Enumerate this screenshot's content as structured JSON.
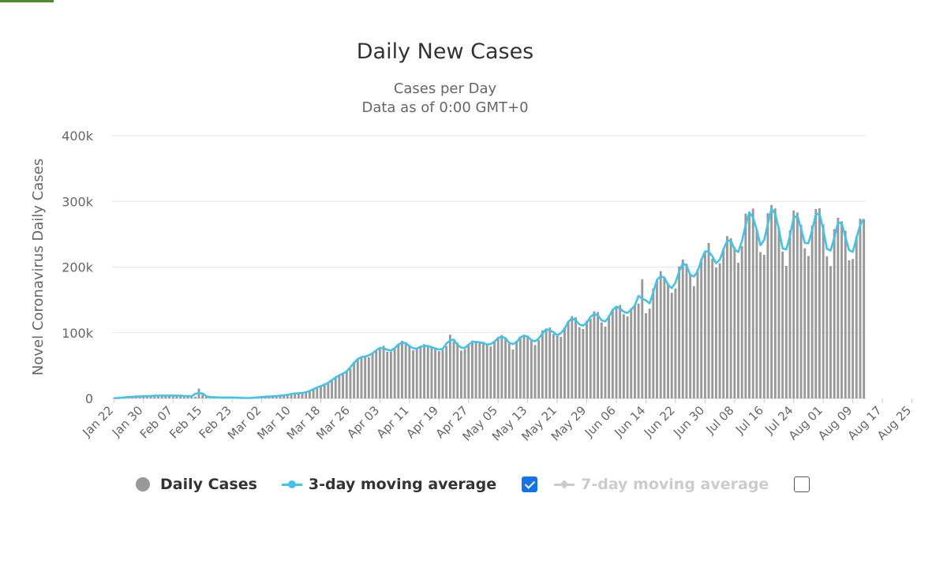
{
  "chart_data": {
    "type": "bar",
    "title": "Daily New Cases",
    "subtitle_lines": [
      "Cases per Day",
      "Data as of 0:00 GMT+0"
    ],
    "ylabel": "Novel Coronavirus Daily Cases",
    "ylim": [
      0,
      400000
    ],
    "yticks": [
      0,
      100000,
      200000,
      300000,
      400000
    ],
    "ytick_labels": [
      "0",
      "100k",
      "200k",
      "300k",
      "400k"
    ],
    "x_start": "Jan 22",
    "x_end": "Aug 28",
    "xtick_labels": [
      "Jan 22",
      "Jan 30",
      "Feb 07",
      "Feb 15",
      "Feb 23",
      "Mar 02",
      "Mar 10",
      "Mar 18",
      "Mar 26",
      "Apr 03",
      "Apr 11",
      "Apr 19",
      "Apr 27",
      "May 05",
      "May 13",
      "May 21",
      "May 29",
      "Jun 06",
      "Jun 14",
      "Jun 22",
      "Jun 30",
      "Jul 08",
      "Jul 16",
      "Jul 24",
      "Aug 01",
      "Aug 09",
      "Aug 17",
      "Aug 25"
    ],
    "grid": true,
    "legend_position": "bottom",
    "series": [
      {
        "name": "Daily Cases",
        "type": "bar",
        "color": "#999999",
        "values": [
          580,
          100,
          650,
          2100,
          1800,
          2500,
          2800,
          3200,
          3100,
          3400,
          3800,
          4100,
          4300,
          4100,
          4200,
          4500,
          4000,
          4500,
          3900,
          3800,
          3600,
          3300,
          2600,
          15000,
          5500,
          2200,
          2200,
          1800,
          1900,
          1100,
          1200,
          1700,
          1600,
          800,
          1000,
          700,
          500,
          600,
          1200,
          1400,
          2000,
          2600,
          2800,
          3100,
          3600,
          4100,
          4500,
          5200,
          6800,
          7800,
          7600,
          8100,
          9000,
          11000,
          14200,
          17000,
          18600,
          20600,
          23800,
          27100,
          33200,
          35200,
          37000,
          41000,
          45500,
          55700,
          60800,
          63100,
          65000,
          62500,
          69100,
          74100,
          76300,
          80200,
          71100,
          70900,
          75900,
          82700,
          87700,
          84000,
          81000,
          73100,
          75200,
          78600,
          82600,
          78600,
          78000,
          77500,
          72000,
          74000,
          80000,
          97000,
          86700,
          84600,
          72800,
          75000,
          82700,
          88200,
          85900,
          84100,
          86100,
          81100,
          79000,
          87700,
          92300,
          96500,
          92500,
          86000,
          74500,
          87800,
          94000,
          97000,
          95000,
          90000,
          81300,
          89200,
          103600,
          104300,
          108000,
          98200,
          96400,
          93600,
          108100,
          116800,
          125300,
          123500,
          108500,
          105700,
          118500,
          121200,
          132500,
          131400,
          115600,
          109300,
          126700,
          136400,
          140700,
          142200,
          128200,
          124800,
          137300,
          142700,
          144400,
          181300,
          129700,
          136700,
          167500,
          180700,
          193800,
          183300,
          175100,
          160700,
          167500,
          200800,
          211400,
          205000,
          189300,
          170900,
          196700,
          212900,
          221700,
          236600,
          212700,
          199200,
          205700,
          228500,
          247100,
          243800,
          230300,
          206500,
          231600,
          281400,
          279400,
          289000,
          258200,
          222800,
          218600,
          282000,
          294600,
          289200,
          259500,
          223400,
          201700,
          255600,
          286000,
          283000,
          264400,
          228600,
          216900,
          263300,
          288400,
          289400,
          265200,
          216300,
          201400,
          257800,
          275000,
          269700,
          255300,
          210100,
          212200,
          246900,
          273500,
          272800
        ]
      },
      {
        "name": "3-day moving average",
        "type": "line",
        "color": "#42c3ea"
      },
      {
        "name": "7-day moving average",
        "type": "line",
        "color": "#cccccc",
        "hidden": true
      }
    ]
  },
  "legend": {
    "items": [
      {
        "label": "Daily Cases",
        "enabled": true
      },
      {
        "label": "3-day moving average",
        "enabled": true,
        "checkbox_checked": true
      },
      {
        "label": "7-day moving average",
        "enabled": false,
        "checkbox_checked": false
      }
    ]
  }
}
